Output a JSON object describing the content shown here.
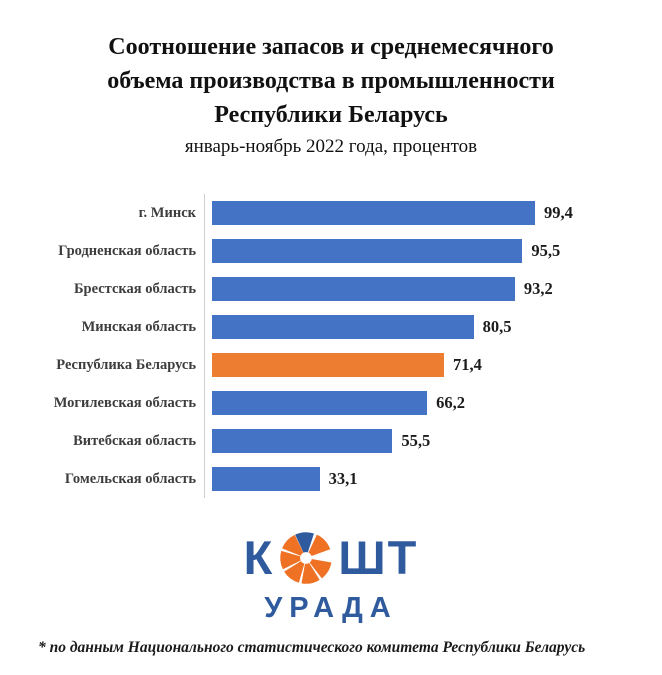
{
  "header": {
    "title_lines": [
      "Соотношение запасов и среднемесячного",
      "объема производства в промышленности",
      "Республики Беларусь"
    ],
    "subtitle": "январь-ноябрь 2022 года, процентов"
  },
  "chart_data": {
    "type": "bar",
    "orientation": "horizontal",
    "title": "Соотношение запасов и среднемесячного объема производства в промышленности Республики Беларусь",
    "subtitle": "январь-ноябрь 2022 года, процентов",
    "categories": [
      "г. Минск",
      "Гродненская область",
      "Брестская область",
      "Минская область",
      "Республика Беларусь",
      "Могилевская область",
      "Витебская область",
      "Гомельская область"
    ],
    "values": [
      99.4,
      95.5,
      93.2,
      80.5,
      71.4,
      66.2,
      55.5,
      33.1
    ],
    "value_labels": [
      "99,4",
      "95,5",
      "93,2",
      "80,5",
      "71,4",
      "66,2",
      "55,5",
      "33,1"
    ],
    "highlight_index": 4,
    "xlim": [
      0,
      100
    ],
    "grid": false,
    "legend": false,
    "bar_color": "#4472C4",
    "highlight_color": "#ED7D31"
  },
  "logo": {
    "text_before": "К",
    "text_after": "ШТ",
    "subtext": "УРАДА",
    "text_color": "#2F5A9E",
    "icon_color": "#EE7124",
    "icon_accent_color": "#2F5A9E"
  },
  "footnote": "* по данным Национального статистического комитета Республики Беларусь"
}
